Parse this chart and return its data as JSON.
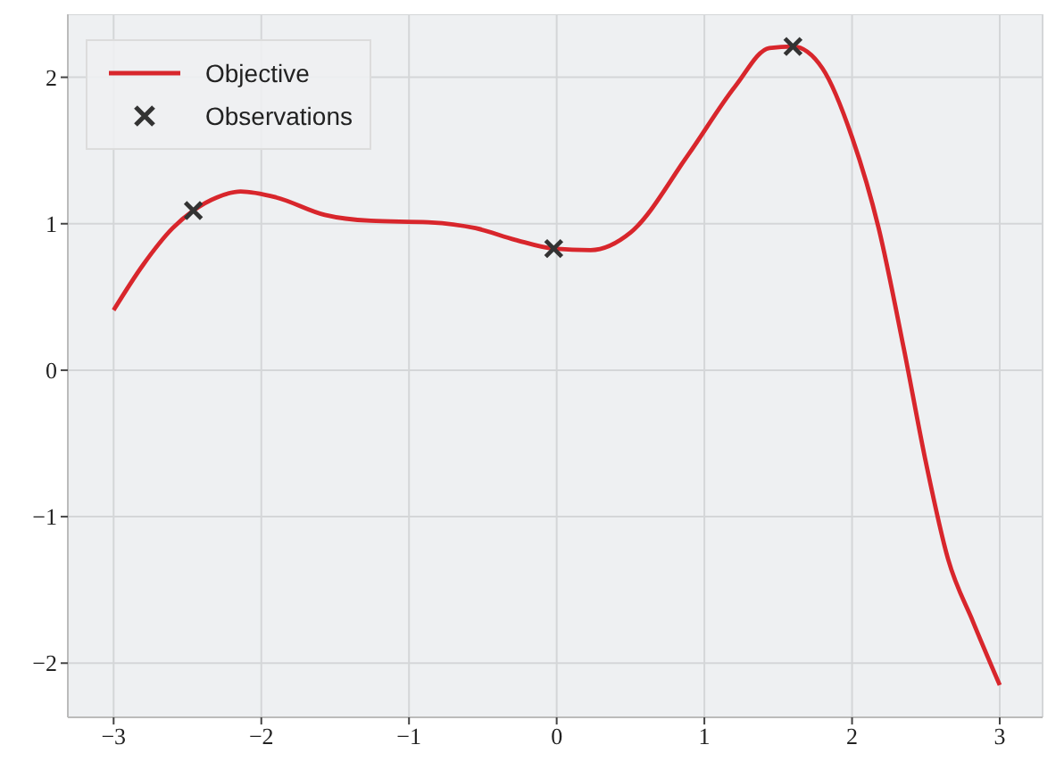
{
  "chart_data": {
    "type": "line",
    "xlim": [
      -3.31,
      3.29
    ],
    "ylim": [
      -2.37,
      2.43
    ],
    "xticks": [
      -3,
      -2,
      -1,
      0,
      1,
      2,
      3
    ],
    "yticks": [
      -2,
      -1,
      0,
      1,
      2
    ],
    "grid": true,
    "legend": "top left",
    "series": [
      {
        "name": "Objective",
        "color": "#d8262c",
        "marker": "none",
        "line_style": "solid",
        "x": [
          -3,
          -2.8,
          -2.6,
          -2.46,
          -2.3,
          -2.14,
          -1.9,
          -1.57,
          -1.26,
          -0.87,
          -0.55,
          -0.28,
          -0.02,
          0.23,
          0.5,
          0.89,
          1.21,
          1.44,
          1.6,
          1.8,
          2.0,
          2.18,
          2.35,
          2.5,
          2.65,
          2.82,
          3.0
        ],
        "values": [
          0.41,
          0.72,
          0.97,
          1.09,
          1.18,
          1.22,
          1.18,
          1.06,
          1.02,
          1.01,
          0.97,
          0.89,
          0.83,
          0.82,
          0.94,
          1.47,
          1.94,
          2.2,
          2.21,
          2.06,
          1.59,
          0.97,
          0.15,
          -0.63,
          -1.29,
          -1.72,
          -2.15
        ]
      },
      {
        "name": "Observations",
        "type": "scatter",
        "color": "#333333",
        "marker": "cross",
        "x": [
          -2.46,
          -0.02,
          1.6
        ],
        "values": [
          1.09,
          0.83,
          2.21
        ]
      }
    ]
  }
}
